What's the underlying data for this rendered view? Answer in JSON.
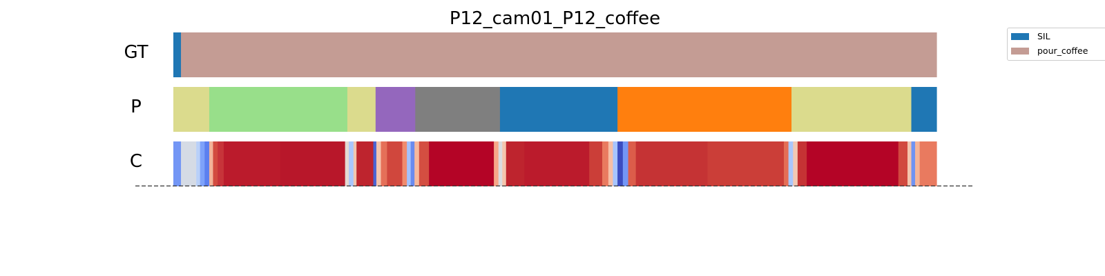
{
  "chart_data": {
    "type": "segmentation_timeline",
    "title": "P12_cam01_P12_coffee",
    "duration": 1.0,
    "rows": [
      {
        "label": "GT",
        "segments": [
          {
            "start": 0.0,
            "end": 0.01,
            "color": "#1f77b4"
          },
          {
            "start": 0.01,
            "end": 1.0,
            "color": "#c49c94"
          }
        ]
      },
      {
        "label": "P",
        "segments": [
          {
            "start": 0.0,
            "end": 0.047,
            "color": "#dbdb8d"
          },
          {
            "start": 0.047,
            "end": 0.228,
            "color": "#98df8a"
          },
          {
            "start": 0.228,
            "end": 0.265,
            "color": "#dbdb8d"
          },
          {
            "start": 0.265,
            "end": 0.317,
            "color": "#9467bd"
          },
          {
            "start": 0.317,
            "end": 0.428,
            "color": "#7f7f7f"
          },
          {
            "start": 0.428,
            "end": 0.582,
            "color": "#1f77b4"
          },
          {
            "start": 0.582,
            "end": 0.81,
            "color": "#ff7f0e"
          },
          {
            "start": 0.81,
            "end": 0.967,
            "color": "#dbdb8d"
          },
          {
            "start": 0.967,
            "end": 1.0,
            "color": "#1f77b4"
          }
        ]
      },
      {
        "label": "C",
        "segments": [
          {
            "start": 0.0,
            "end": 0.01,
            "color": "#7396f5"
          },
          {
            "start": 0.01,
            "end": 0.03,
            "color": "#d5dbe5"
          },
          {
            "start": 0.03,
            "end": 0.035,
            "color": "#b9d0f9"
          },
          {
            "start": 0.035,
            "end": 0.041,
            "color": "#7ea2fa"
          },
          {
            "start": 0.041,
            "end": 0.047,
            "color": "#5b7ff0"
          },
          {
            "start": 0.047,
            "end": 0.052,
            "color": "#f2b39a"
          },
          {
            "start": 0.052,
            "end": 0.058,
            "color": "#d24b40"
          },
          {
            "start": 0.058,
            "end": 0.066,
            "color": "#c7343a"
          },
          {
            "start": 0.066,
            "end": 0.14,
            "color": "#bb1b2c"
          },
          {
            "start": 0.14,
            "end": 0.225,
            "color": "#b8172a"
          },
          {
            "start": 0.225,
            "end": 0.23,
            "color": "#e4d9d2"
          },
          {
            "start": 0.23,
            "end": 0.236,
            "color": "#a9c6fd"
          },
          {
            "start": 0.236,
            "end": 0.24,
            "color": "#f1c6af"
          },
          {
            "start": 0.24,
            "end": 0.262,
            "color": "#be242e"
          },
          {
            "start": 0.262,
            "end": 0.266,
            "color": "#4a63d3"
          },
          {
            "start": 0.266,
            "end": 0.272,
            "color": "#f4c4ad"
          },
          {
            "start": 0.272,
            "end": 0.28,
            "color": "#e57058"
          },
          {
            "start": 0.28,
            "end": 0.3,
            "color": "#d0473d"
          },
          {
            "start": 0.3,
            "end": 0.306,
            "color": "#f08b6e"
          },
          {
            "start": 0.306,
            "end": 0.311,
            "color": "#a3c2fe"
          },
          {
            "start": 0.311,
            "end": 0.316,
            "color": "#6a8bef"
          },
          {
            "start": 0.316,
            "end": 0.322,
            "color": "#f7b89c"
          },
          {
            "start": 0.322,
            "end": 0.335,
            "color": "#d44e41"
          },
          {
            "start": 0.335,
            "end": 0.42,
            "color": "#b40426"
          },
          {
            "start": 0.42,
            "end": 0.426,
            "color": "#f7a889"
          },
          {
            "start": 0.426,
            "end": 0.431,
            "color": "#dadce0"
          },
          {
            "start": 0.431,
            "end": 0.436,
            "color": "#f4c5ad"
          },
          {
            "start": 0.436,
            "end": 0.46,
            "color": "#be242e"
          },
          {
            "start": 0.46,
            "end": 0.545,
            "color": "#bb1b2c"
          },
          {
            "start": 0.545,
            "end": 0.562,
            "color": "#cb3e38"
          },
          {
            "start": 0.562,
            "end": 0.57,
            "color": "#e97a5f"
          },
          {
            "start": 0.57,
            "end": 0.576,
            "color": "#f6bfa6"
          },
          {
            "start": 0.576,
            "end": 0.582,
            "color": "#a7c5fe"
          },
          {
            "start": 0.582,
            "end": 0.589,
            "color": "#3b4cc0"
          },
          {
            "start": 0.589,
            "end": 0.596,
            "color": "#7396f5"
          },
          {
            "start": 0.596,
            "end": 0.606,
            "color": "#dc5d4a"
          },
          {
            "start": 0.606,
            "end": 0.7,
            "color": "#c53334"
          },
          {
            "start": 0.7,
            "end": 0.8,
            "color": "#cb3e38"
          },
          {
            "start": 0.8,
            "end": 0.806,
            "color": "#e46e56"
          },
          {
            "start": 0.806,
            "end": 0.812,
            "color": "#aac7fd"
          },
          {
            "start": 0.812,
            "end": 0.818,
            "color": "#f2c9b4"
          },
          {
            "start": 0.818,
            "end": 0.83,
            "color": "#c53334"
          },
          {
            "start": 0.83,
            "end": 0.95,
            "color": "#b40426"
          },
          {
            "start": 0.95,
            "end": 0.962,
            "color": "#d1493f"
          },
          {
            "start": 0.962,
            "end": 0.967,
            "color": "#f4c5ad"
          },
          {
            "start": 0.967,
            "end": 0.972,
            "color": "#7093f3"
          },
          {
            "start": 0.972,
            "end": 0.978,
            "color": "#f7b497"
          },
          {
            "start": 0.978,
            "end": 1.0,
            "color": "#e97a5f"
          }
        ]
      }
    ],
    "legend": {
      "placement": "top-right",
      "entries": [
        {
          "label": "SIL",
          "color": "#1f77b4"
        },
        {
          "label": "pour_coffee",
          "color": "#c49c94"
        }
      ]
    },
    "grid": false
  }
}
